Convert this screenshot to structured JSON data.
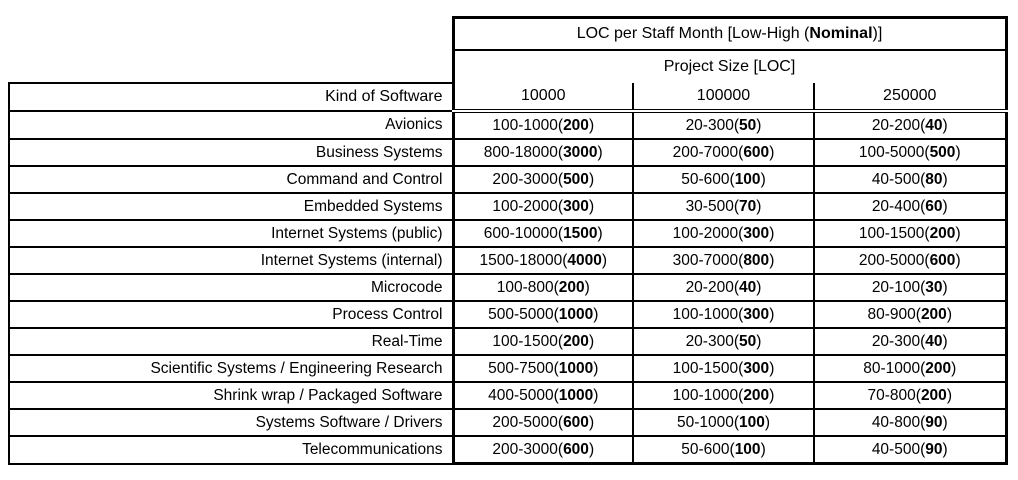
{
  "page": {
    "background": "#ffffff",
    "text_color": "#000000",
    "border_color": "#000000"
  },
  "table": {
    "title": {
      "prefix": "LOC per Staff Month [Low-High (",
      "bold": "Nominal",
      "suffix": ")]"
    },
    "subheader": "Project Size [LOC]",
    "kind_header": "Kind of Software",
    "columns": [
      "10000",
      "100000",
      "250000"
    ],
    "rows": [
      {
        "kind": "Avionics",
        "cells": [
          {
            "prefix": "100-1000(",
            "nominal": "200",
            "suffix": ")"
          },
          {
            "prefix": "20-300(",
            "nominal": "50",
            "suffix": ")"
          },
          {
            "prefix": "20-200(",
            "nominal": "40",
            "suffix": ")"
          }
        ]
      },
      {
        "kind": "Business Systems",
        "cells": [
          {
            "prefix": "800-18000(",
            "nominal": "3000",
            "suffix": ")"
          },
          {
            "prefix": "200-7000(",
            "nominal": "600",
            "suffix": ")"
          },
          {
            "prefix": "100-5000(",
            "nominal": "500",
            "suffix": ")"
          }
        ]
      },
      {
        "kind": "Command and Control",
        "cells": [
          {
            "prefix": "200-3000(",
            "nominal": "500",
            "suffix": ")"
          },
          {
            "prefix": "50-600(",
            "nominal": "100",
            "suffix": ")"
          },
          {
            "prefix": "40-500(",
            "nominal": "80",
            "suffix": ")"
          }
        ]
      },
      {
        "kind": "Embedded Systems",
        "cells": [
          {
            "prefix": "100-2000(",
            "nominal": "300",
            "suffix": ")"
          },
          {
            "prefix": "30-500(",
            "nominal": "70",
            "suffix": ")"
          },
          {
            "prefix": "20-400(",
            "nominal": "60",
            "suffix": ")"
          }
        ]
      },
      {
        "kind": "Internet Systems (public)",
        "cells": [
          {
            "prefix": "600-10000(",
            "nominal": "1500",
            "suffix": ")"
          },
          {
            "prefix": "100-2000(",
            "nominal": "300",
            "suffix": ")"
          },
          {
            "prefix": "100-1500(",
            "nominal": "200",
            "suffix": ")"
          }
        ]
      },
      {
        "kind": "Internet Systems (internal)",
        "cells": [
          {
            "prefix": "1500-18000(",
            "nominal": "4000",
            "suffix": ")"
          },
          {
            "prefix": "300-7000(",
            "nominal": "800",
            "suffix": ")"
          },
          {
            "prefix": "200-5000(",
            "nominal": "600",
            "suffix": ")"
          }
        ]
      },
      {
        "kind": "Microcode",
        "cells": [
          {
            "prefix": "100-800(",
            "nominal": "200",
            "suffix": ")"
          },
          {
            "prefix": "20-200(",
            "nominal": "40",
            "suffix": ")"
          },
          {
            "prefix": "20-100(",
            "nominal": "30",
            "suffix": ")"
          }
        ]
      },
      {
        "kind": "Process Control",
        "cells": [
          {
            "prefix": "500-5000(",
            "nominal": "1000",
            "suffix": ")"
          },
          {
            "prefix": "100-1000(",
            "nominal": "300",
            "suffix": ")"
          },
          {
            "prefix": "80-900(",
            "nominal": "200",
            "suffix": ")"
          }
        ]
      },
      {
        "kind": "Real-Time",
        "cells": [
          {
            "prefix": "100-1500(",
            "nominal": "200",
            "suffix": ")"
          },
          {
            "prefix": "20-300(",
            "nominal": "50",
            "suffix": ")"
          },
          {
            "prefix": "20-300(",
            "nominal": "40",
            "suffix": ")"
          }
        ]
      },
      {
        "kind": "Scientific Systems / Engineering Research",
        "cells": [
          {
            "prefix": "500-7500(",
            "nominal": "1000",
            "suffix": ")"
          },
          {
            "prefix": "100-1500(",
            "nominal": "300",
            "suffix": ")"
          },
          {
            "prefix": "80-1000(",
            "nominal": "200",
            "suffix": ")"
          }
        ]
      },
      {
        "kind": "Shrink wrap / Packaged Software",
        "cells": [
          {
            "prefix": "400-5000(",
            "nominal": "1000",
            "suffix": ")"
          },
          {
            "prefix": "100-1000(",
            "nominal": "200",
            "suffix": ")"
          },
          {
            "prefix": "70-800(",
            "nominal": "200",
            "suffix": ")"
          }
        ]
      },
      {
        "kind": "Systems Software / Drivers",
        "cells": [
          {
            "prefix": "200-5000(",
            "nominal": "600",
            "suffix": ")"
          },
          {
            "prefix": "50-1000(",
            "nominal": "100",
            "suffix": ")"
          },
          {
            "prefix": "40-800(",
            "nominal": "90",
            "suffix": ")"
          }
        ]
      },
      {
        "kind": "Telecommunications",
        "cells": [
          {
            "prefix": "200-3000(",
            "nominal": "600",
            "suffix": ")"
          },
          {
            "prefix": "50-600(",
            "nominal": "100",
            "suffix": ")"
          },
          {
            "prefix": "40-500(",
            "nominal": "90",
            "suffix": ")"
          }
        ]
      }
    ]
  }
}
